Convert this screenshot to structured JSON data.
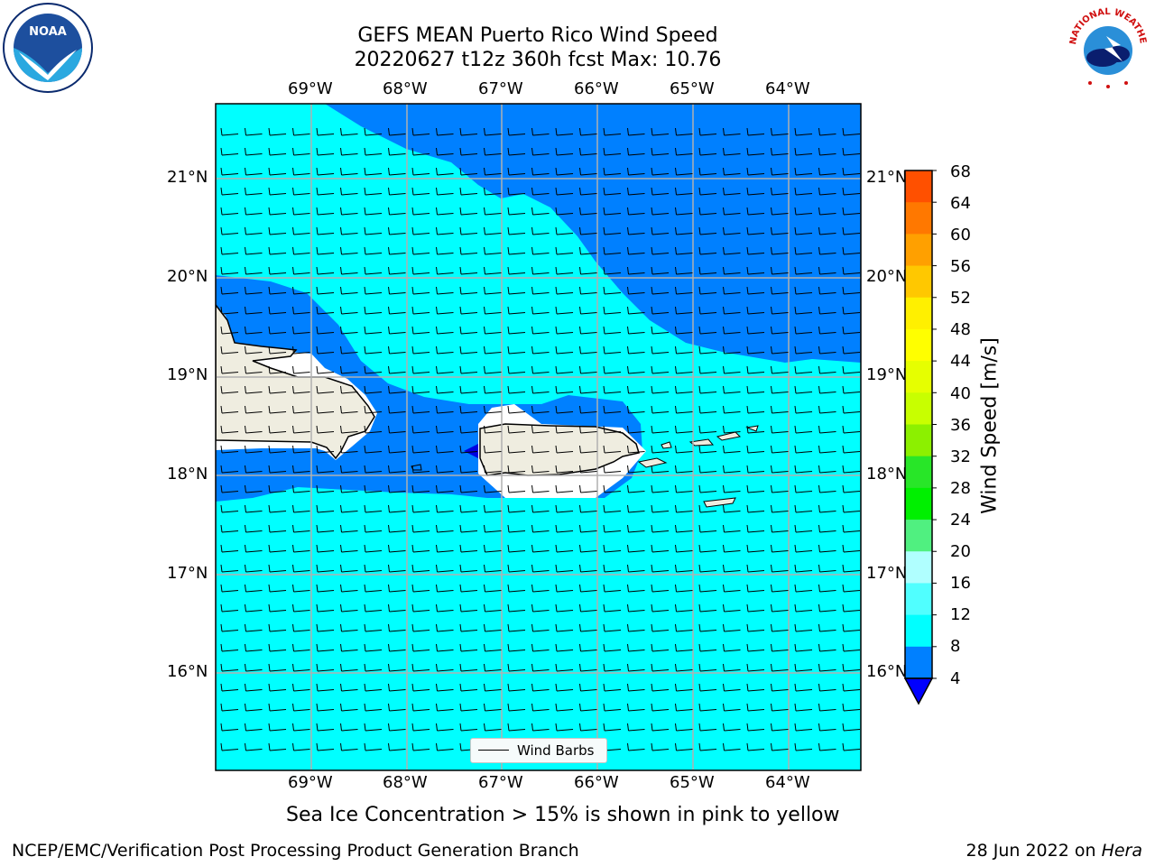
{
  "header": {
    "title_line1": "GEFS MEAN Puerto Rico Wind Speed",
    "title_line2": "20220627 t12z 360h fcst   Max: 10.76"
  },
  "logos": {
    "noaa_text": "NOAA",
    "nws_text": "NATIONAL WEATHER SERVICE"
  },
  "map": {
    "lon_labels": [
      "69°W",
      "68°W",
      "67°W",
      "66°W",
      "65°W",
      "64°W"
    ],
    "lat_labels": [
      "21°N",
      "20°N",
      "19°N",
      "18°N",
      "17°N",
      "16°N"
    ],
    "legend_label": "Wind Barbs",
    "colors": {
      "ocean_light": "#00ffff",
      "ocean_mid": "#0080ff",
      "land": "#efede0",
      "gridline": "#b0b0b0"
    }
  },
  "colorbar": {
    "label": "Wind Speed [m/s]",
    "ticks": [
      "68",
      "64",
      "60",
      "56",
      "52",
      "48",
      "44",
      "40",
      "36",
      "32",
      "28",
      "24",
      "20",
      "16",
      "12",
      "8",
      "4"
    ],
    "colors": [
      "#ff0000",
      "#ff2800",
      "#ff5000",
      "#ff7800",
      "#ffa000",
      "#ffc800",
      "#fff000",
      "#ffff00",
      "#e6ff00",
      "#c8ff00",
      "#8cf000",
      "#28e628",
      "#00f000",
      "#50f080",
      "#b0ffff",
      "#50ffff",
      "#00ffff",
      "#0080ff"
    ]
  },
  "footer": {
    "sea_ice_note": "Sea Ice Concentration > 15% is shown in pink to yellow",
    "branch": "NCEP/EMC/Verification Post Processing Product Generation Branch",
    "date_prefix": "28 Jun 2022 on ",
    "date_host": "Hera"
  }
}
